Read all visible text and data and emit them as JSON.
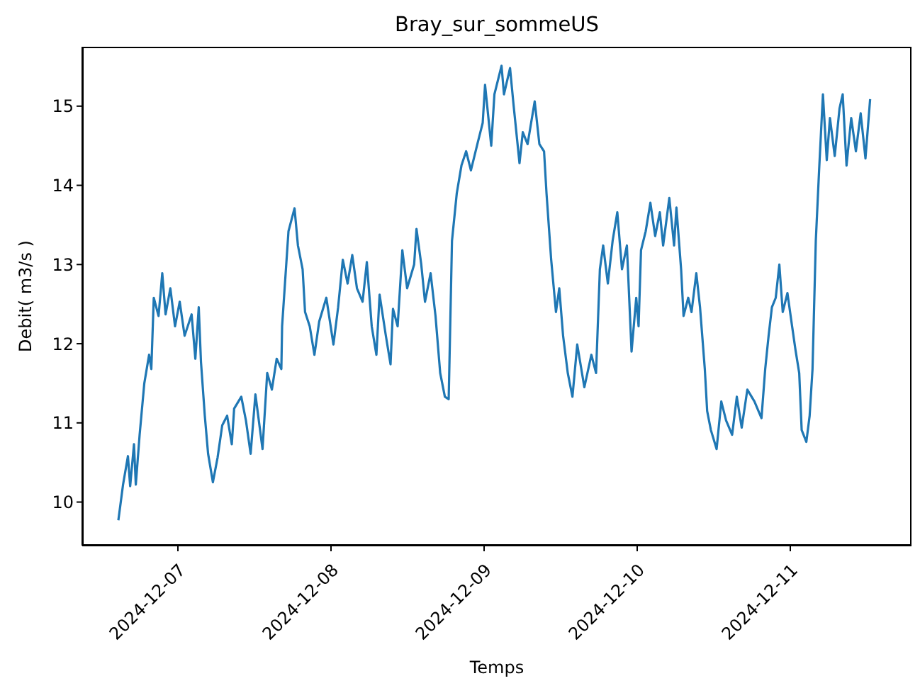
{
  "chart_data": {
    "type": "line",
    "title": "Bray_sur_sommeUS",
    "xlabel": "Temps",
    "ylabel": "Debit( m3/s )",
    "xlim": [
      "2024-12-06T09:00",
      "2024-12-11T19:00"
    ],
    "xticks": [
      "2024-12-07",
      "2024-12-08",
      "2024-12-09",
      "2024-12-10",
      "2024-12-11"
    ],
    "ylim": [
      9.45,
      15.75
    ],
    "yticks": [
      10,
      11,
      12,
      13,
      14,
      15
    ],
    "grid": false,
    "legend": false,
    "x": [
      "2024-12-06T14:40",
      "2024-12-06T15:24",
      "2024-12-06T16:10",
      "2024-12-06T16:31",
      "2024-12-06T17:07",
      "2024-12-06T17:24",
      "2024-12-06T18:00",
      "2024-12-06T18:44",
      "2024-12-06T19:29",
      "2024-12-06T19:50",
      "2024-12-06T20:13",
      "2024-12-06T20:58",
      "2024-12-06T21:33",
      "2024-12-06T22:04",
      "2024-12-06T22:49",
      "2024-12-06T23:33",
      "2024-12-07T00:17",
      "2024-12-07T01:03",
      "2024-12-07T02:09",
      "2024-12-07T02:44",
      "2024-12-07T03:16",
      "2024-12-07T03:37",
      "2024-12-07T04:13",
      "2024-12-07T04:44",
      "2024-12-07T05:29",
      "2024-12-07T06:13",
      "2024-12-07T06:57",
      "2024-12-07T07:43",
      "2024-12-07T08:27",
      "2024-12-07T08:49",
      "2024-12-07T09:56",
      "2024-12-07T10:40",
      "2024-12-07T11:24",
      "2024-12-07T12:09",
      "2024-12-07T13:16",
      "2024-12-07T14:00",
      "2024-12-07T14:44",
      "2024-12-07T15:29",
      "2024-12-07T16:13",
      "2024-12-07T16:20",
      "2024-12-07T17:20",
      "2024-12-07T18:17",
      "2024-12-07T18:49",
      "2024-12-07T19:33",
      "2024-12-07T19:56",
      "2024-12-07T20:40",
      "2024-12-07T21:24",
      "2024-12-07T22:09",
      "2024-12-07T23:16",
      "2024-12-08T00:23",
      "2024-12-08T01:07",
      "2024-12-08T01:51",
      "2024-12-08T02:36",
      "2024-12-08T03:20",
      "2024-12-08T04:04",
      "2024-12-08T04:57",
      "2024-12-08T05:37",
      "2024-12-08T06:23",
      "2024-12-08T07:07",
      "2024-12-08T07:37",
      "2024-12-08T08:36",
      "2024-12-08T09:20",
      "2024-12-08T09:43",
      "2024-12-08T10:27",
      "2024-12-08T11:11",
      "2024-12-08T11:56",
      "2024-12-08T13:02",
      "2024-12-08T13:24",
      "2024-12-08T14:09",
      "2024-12-08T14:44",
      "2024-12-08T15:37",
      "2024-12-08T16:23",
      "2024-12-08T17:07",
      "2024-12-08T17:51",
      "2024-12-08T18:27",
      "2024-12-08T18:58",
      "2024-12-08T19:43",
      "2024-12-08T20:27",
      "2024-12-08T21:11",
      "2024-12-08T21:56",
      "2024-12-08T23:02",
      "2024-12-08T23:47",
      "2024-12-09T00:09",
      "2024-12-09T01:07",
      "2024-12-09T01:37",
      "2024-12-09T02:44",
      "2024-12-09T03:07",
      "2024-12-09T04:04",
      "2024-12-09T04:36",
      "2024-12-09T05:33",
      "2024-12-09T06:04",
      "2024-12-09T06:49",
      "2024-12-09T07:56",
      "2024-12-09T08:40",
      "2024-12-09T09:24",
      "2024-12-09T09:47",
      "2024-12-09T10:31",
      "2024-12-09T11:16",
      "2024-12-09T11:47",
      "2024-12-09T12:23",
      "2024-12-09T13:07",
      "2024-12-09T13:51",
      "2024-12-09T14:36",
      "2024-12-09T15:43",
      "2024-12-09T16:49",
      "2024-12-09T17:33",
      "2024-12-09T18:09",
      "2024-12-09T18:40",
      "2024-12-09T19:24",
      "2024-12-09T20:09",
      "2024-12-09T20:53",
      "2024-12-09T21:37",
      "2024-12-09T22:23",
      "2024-12-09T23:07",
      "2024-12-09T23:51",
      "2024-12-10T00:13",
      "2024-12-10T00:36",
      "2024-12-10T01:20",
      "2024-12-10T02:04",
      "2024-12-10T02:49",
      "2024-12-10T03:33",
      "2024-12-10T04:04",
      "2024-12-10T05:02",
      "2024-12-10T05:47",
      "2024-12-10T06:09",
      "2024-12-10T06:53",
      "2024-12-10T07:16",
      "2024-12-10T08:00",
      "2024-12-10T08:31",
      "2024-12-10T09:16",
      "2024-12-10T09:51",
      "2024-12-10T10:36",
      "2024-12-10T10:58",
      "2024-12-10T11:33",
      "2024-12-10T12:27",
      "2024-12-10T13:11",
      "2024-12-10T13:56",
      "2024-12-10T14:53",
      "2024-12-10T15:37",
      "2024-12-10T16:23",
      "2024-12-10T17:16",
      "2024-12-10T18:23",
      "2024-12-10T19:29",
      "2024-12-10T20:04",
      "2024-12-10T20:36",
      "2024-12-10T21:07",
      "2024-12-10T21:43",
      "2024-12-10T22:17",
      "2024-12-10T22:49",
      "2024-12-10T23:33",
      "2024-12-11T00:17",
      "2024-12-11T00:49",
      "2024-12-11T01:24",
      "2024-12-11T01:47",
      "2024-12-11T02:31",
      "2024-12-11T03:02",
      "2024-12-11T03:29",
      "2024-12-11T04:00",
      "2024-12-11T04:31",
      "2024-12-11T05:07",
      "2024-12-11T05:43",
      "2024-12-11T06:13",
      "2024-12-11T06:58",
      "2024-12-11T07:43",
      "2024-12-11T08:13",
      "2024-12-11T08:49",
      "2024-12-11T09:33",
      "2024-12-11T10:17",
      "2024-12-11T11:02",
      "2024-12-11T11:47",
      "2024-12-11T12:31"
    ],
    "series": [
      {
        "color": "#1f77b4",
        "values": [
          9.77,
          10.22,
          10.58,
          10.2,
          10.73,
          10.22,
          10.85,
          11.5,
          11.86,
          11.68,
          12.58,
          12.35,
          12.89,
          12.37,
          12.7,
          12.22,
          12.53,
          12.1,
          12.37,
          11.81,
          12.46,
          11.77,
          11.09,
          10.61,
          10.25,
          10.56,
          10.97,
          11.09,
          10.73,
          11.18,
          11.33,
          11.03,
          10.61,
          11.36,
          10.67,
          11.63,
          11.42,
          11.81,
          11.68,
          12.22,
          13.42,
          13.71,
          13.24,
          12.94,
          12.4,
          12.22,
          11.86,
          12.28,
          12.58,
          11.99,
          12.46,
          13.06,
          12.76,
          13.12,
          12.7,
          12.53,
          13.03,
          12.22,
          11.86,
          12.62,
          12.1,
          11.74,
          12.44,
          12.22,
          13.18,
          12.7,
          13.0,
          13.45,
          13.0,
          12.53,
          12.89,
          12.35,
          11.63,
          11.33,
          11.3,
          13.3,
          13.9,
          14.25,
          14.43,
          14.19,
          14.55,
          14.79,
          15.27,
          14.5,
          15.15,
          15.51,
          15.15,
          15.48,
          15.03,
          14.28,
          14.67,
          14.52,
          15.06,
          14.52,
          14.43,
          13.9,
          13.06,
          12.4,
          12.7,
          12.1,
          11.63,
          11.33,
          11.99,
          11.45,
          11.86,
          11.63,
          12.94,
          13.24,
          12.76,
          13.3,
          13.66,
          12.94,
          13.24,
          11.9,
          12.58,
          12.22,
          13.18,
          13.42,
          13.78,
          13.36,
          13.66,
          13.24,
          13.84,
          13.24,
          13.72,
          12.94,
          12.35,
          12.58,
          12.4,
          12.89,
          12.46,
          11.68,
          11.15,
          10.91,
          10.67,
          11.27,
          11.03,
          10.85,
          11.33,
          10.94,
          11.42,
          11.27,
          11.06,
          11.68,
          12.1,
          12.46,
          12.58,
          13.0,
          12.4,
          12.64,
          12.22,
          11.92,
          11.63,
          10.91,
          10.76,
          11.09,
          11.68,
          13.3,
          14.19,
          15.15,
          14.32,
          14.85,
          14.37,
          14.97,
          15.15,
          14.25,
          14.85,
          14.43,
          14.91,
          14.34,
          15.09
        ]
      }
    ]
  }
}
